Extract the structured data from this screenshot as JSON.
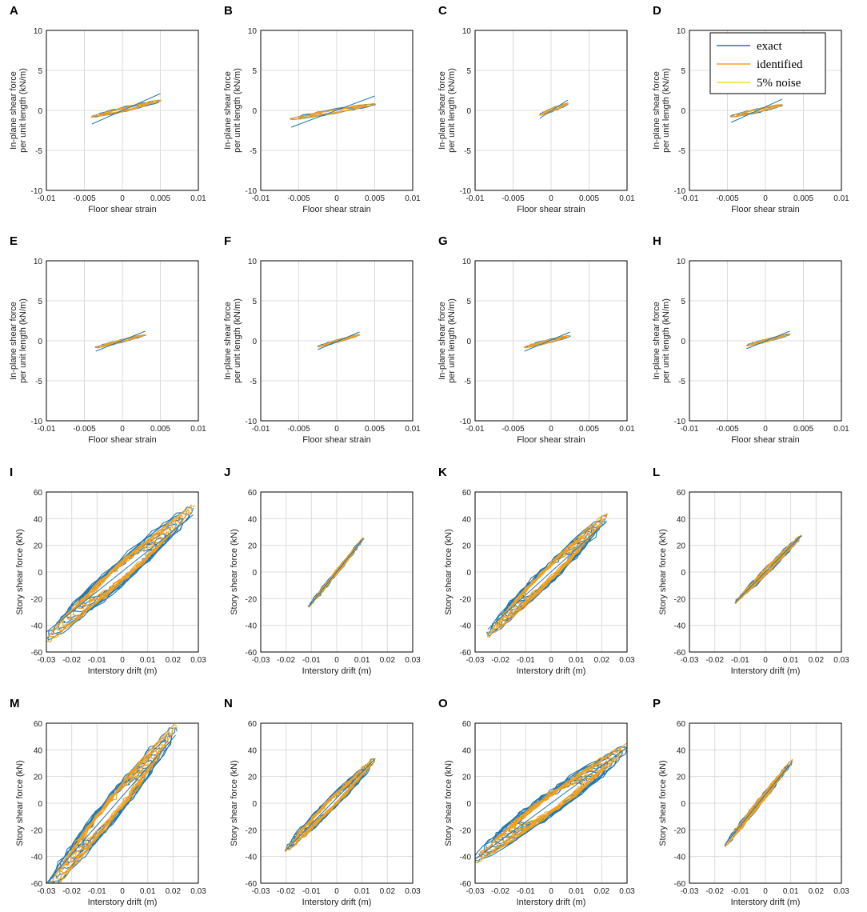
{
  "colors": {
    "exact": "#1f77b4",
    "identified": "#f0a020",
    "noise": "#f0e020",
    "grid": "#dcdcdc"
  },
  "legend": {
    "panel": "D",
    "placement": "top-right",
    "exact": "exact",
    "identified": "identified",
    "noise": "5% noise"
  },
  "chart_data": [
    {
      "letter": "A",
      "type": "line",
      "xlabel": "Floor shear strain",
      "ylabel": [
        "In-plane shear force",
        "per unit length (kN/m)"
      ],
      "xlim": [
        -0.01,
        0.01
      ],
      "ylim": [
        -10,
        10
      ],
      "xticks": [
        "-0.01",
        "-0.005",
        "0",
        "0.005",
        "0.01"
      ],
      "yticks": [
        "10",
        "5",
        "0",
        "-5",
        "-10"
      ],
      "loop": {
        "xmin": -0.004,
        "xmax": 0.005,
        "ymin": -1.7,
        "ymax": 2.1,
        "slope_rel": 0.45,
        "thick": 0.25,
        "n": 3
      }
    },
    {
      "letter": "B",
      "type": "line",
      "xlabel": "Floor shear strain",
      "ylabel": [
        "In-plane shear force",
        "per unit length (kN/m)"
      ],
      "xlim": [
        -0.01,
        0.01
      ],
      "ylim": [
        -10,
        10
      ],
      "xticks": [
        "-0.01",
        "-0.005",
        "0",
        "0.005",
        "0.01"
      ],
      "yticks": [
        "10",
        "5",
        "0",
        "-5",
        "-10"
      ],
      "loop": {
        "xmin": -0.006,
        "xmax": 0.005,
        "ymin": -2.1,
        "ymax": 1.8,
        "slope_rel": 0.4,
        "thick": 0.25,
        "n": 3
      }
    },
    {
      "letter": "C",
      "type": "line",
      "xlabel": "Floor shear strain",
      "ylabel": [
        "In-plane shear force",
        "per unit length (kN/m)"
      ],
      "xlim": [
        -0.01,
        0.01
      ],
      "ylim": [
        -10,
        10
      ],
      "xticks": [
        "-0.01",
        "-0.005",
        "0",
        "0.005",
        "0.01"
      ],
      "yticks": [
        "10",
        "5",
        "0",
        "-5",
        "-10"
      ],
      "loop": {
        "xmin": -0.0015,
        "xmax": 0.0022,
        "ymin": -1.0,
        "ymax": 1.3,
        "slope_rel": 0.5,
        "thick": 0.35,
        "n": 3
      }
    },
    {
      "letter": "D",
      "type": "line",
      "xlabel": "Floor shear strain",
      "ylabel": [
        "In-plane shear force",
        "per unit length (kN/m)"
      ],
      "xlim": [
        -0.01,
        0.01
      ],
      "ylim": [
        -10,
        10
      ],
      "xticks": [
        "-0.01",
        "-0.005",
        "0",
        "0.005",
        "0.01"
      ],
      "yticks": [
        "10",
        "5",
        "0",
        "-5",
        "-10"
      ],
      "loop": {
        "xmin": -0.0045,
        "xmax": 0.0022,
        "ymin": -1.5,
        "ymax": 1.4,
        "slope_rel": 0.4,
        "thick": 0.3,
        "n": 3
      }
    },
    {
      "letter": "E",
      "type": "line",
      "xlabel": "Floor shear strain",
      "ylabel": [
        "In-plane shear force",
        "per unit length (kN/m)"
      ],
      "xlim": [
        -0.01,
        0.01
      ],
      "ylim": [
        -10,
        10
      ],
      "xticks": [
        "-0.01",
        "-0.005",
        "0",
        "0.005",
        "0.01"
      ],
      "yticks": [
        "10",
        "5",
        "0",
        "-5",
        "-10"
      ],
      "loop": {
        "xmin": -0.0035,
        "xmax": 0.003,
        "ymin": -1.3,
        "ymax": 1.2,
        "slope_rel": 0.55,
        "thick": 0.25,
        "n": 3
      }
    },
    {
      "letter": "F",
      "type": "line",
      "xlabel": "Floor shear strain",
      "ylabel": [
        "In-plane shear force",
        "per unit length (kN/m)"
      ],
      "xlim": [
        -0.01,
        0.01
      ],
      "ylim": [
        -10,
        10
      ],
      "xticks": [
        "-0.01",
        "-0.005",
        "0",
        "0.005",
        "0.01"
      ],
      "yticks": [
        "10",
        "5",
        "0",
        "-5",
        "-10"
      ],
      "loop": {
        "xmin": -0.0025,
        "xmax": 0.003,
        "ymin": -1.1,
        "ymax": 1.1,
        "slope_rel": 0.6,
        "thick": 0.25,
        "n": 3
      }
    },
    {
      "letter": "G",
      "type": "line",
      "xlabel": "Floor shear strain",
      "ylabel": [
        "In-plane shear force",
        "per unit length (kN/m)"
      ],
      "xlim": [
        -0.01,
        0.01
      ],
      "ylim": [
        -10,
        10
      ],
      "xticks": [
        "-0.01",
        "-0.005",
        "0",
        "0.005",
        "0.01"
      ],
      "yticks": [
        "10",
        "5",
        "0",
        "-5",
        "-10"
      ],
      "loop": {
        "xmin": -0.0035,
        "xmax": 0.0025,
        "ymin": -1.3,
        "ymax": 1.1,
        "slope_rel": 0.5,
        "thick": 0.3,
        "n": 3
      }
    },
    {
      "letter": "H",
      "type": "line",
      "xlabel": "Floor shear strain",
      "ylabel": [
        "In-plane shear force",
        "per unit length (kN/m)"
      ],
      "xlim": [
        -0.01,
        0.01
      ],
      "ylim": [
        -10,
        10
      ],
      "xticks": [
        "-0.01",
        "-0.005",
        "0",
        "0.005",
        "0.01"
      ],
      "yticks": [
        "10",
        "5",
        "0",
        "-5",
        "-10"
      ],
      "loop": {
        "xmin": -0.0025,
        "xmax": 0.0032,
        "ymin": -1.0,
        "ymax": 1.2,
        "slope_rel": 0.55,
        "thick": 0.3,
        "n": 3
      }
    },
    {
      "letter": "I",
      "type": "line",
      "xlabel": "Interstory drift (m)",
      "ylabel": [
        "Story shear force (kN)"
      ],
      "xlim": [
        -0.03,
        0.03
      ],
      "ylim": [
        -60,
        60
      ],
      "xticks": [
        "-0.03",
        "-0.02",
        "-0.01",
        "0",
        "0.01",
        "0.02",
        "0.03"
      ],
      "yticks": [
        "60",
        "40",
        "20",
        "0",
        "-20",
        "-40",
        "-60"
      ],
      "loop": {
        "xmin": -0.03,
        "xmax": 0.028,
        "ymin": -45,
        "ymax": 43,
        "slope_rel": 0.85,
        "thick": 0.55,
        "n": 9
      }
    },
    {
      "letter": "J",
      "type": "line",
      "xlabel": "Interstory drift (m)",
      "ylabel": [
        "Story shear force (kN)"
      ],
      "xlim": [
        -0.03,
        0.03
      ],
      "ylim": [
        -60,
        60
      ],
      "xticks": [
        "-0.03",
        "-0.02",
        "-0.01",
        "0",
        "0.01",
        "0.02",
        "0.03"
      ],
      "yticks": [
        "60",
        "40",
        "20",
        "0",
        "-20",
        "-40",
        "-60"
      ],
      "loop": {
        "xmin": -0.011,
        "xmax": 0.0105,
        "ymin": -26,
        "ymax": 25,
        "slope_rel": 0.95,
        "thick": 0.12,
        "n": 5
      }
    },
    {
      "letter": "K",
      "type": "line",
      "xlabel": "Interstory drift (m)",
      "ylabel": [
        "Story shear force (kN)"
      ],
      "xlim": [
        -0.03,
        0.03
      ],
      "ylim": [
        -60,
        60
      ],
      "xticks": [
        "-0.03",
        "-0.02",
        "-0.01",
        "0",
        "0.01",
        "0.02",
        "0.03"
      ],
      "yticks": [
        "60",
        "40",
        "20",
        "0",
        "-20",
        "-40",
        "-60"
      ],
      "loop": {
        "xmin": -0.025,
        "xmax": 0.022,
        "ymin": -43,
        "ymax": 38,
        "slope_rel": 0.85,
        "thick": 0.5,
        "n": 9
      }
    },
    {
      "letter": "L",
      "type": "line",
      "xlabel": "Interstory drift (m)",
      "ylabel": [
        "Story shear force (kN)"
      ],
      "xlim": [
        -0.03,
        0.03
      ],
      "ylim": [
        -60,
        60
      ],
      "xticks": [
        "-0.03",
        "-0.02",
        "-0.01",
        "0",
        "0.01",
        "0.02",
        "0.03"
      ],
      "yticks": [
        "60",
        "40",
        "20",
        "0",
        "-20",
        "-40",
        "-60"
      ],
      "loop": {
        "xmin": -0.012,
        "xmax": 0.014,
        "ymin": -23,
        "ymax": 27,
        "slope_rel": 0.9,
        "thick": 0.22,
        "n": 7
      }
    },
    {
      "letter": "M",
      "type": "line",
      "xlabel": "Interstory drift (m)",
      "ylabel": [
        "Story shear force (kN)"
      ],
      "xlim": [
        -0.03,
        0.03
      ],
      "ylim": [
        -60,
        60
      ],
      "xticks": [
        "-0.03",
        "-0.02",
        "-0.01",
        "0",
        "0.01",
        "0.02",
        "0.03"
      ],
      "yticks": [
        "60",
        "40",
        "20",
        "0",
        "-20",
        "-40",
        "-60"
      ],
      "loop": {
        "xmin": -0.03,
        "xmax": 0.021,
        "ymin": -60,
        "ymax": 51,
        "slope_rel": 0.85,
        "thick": 0.5,
        "n": 9
      }
    },
    {
      "letter": "N",
      "type": "line",
      "xlabel": "Interstory drift (m)",
      "ylabel": [
        "Story shear force (kN)"
      ],
      "xlim": [
        -0.03,
        0.03
      ],
      "ylim": [
        -60,
        60
      ],
      "xticks": [
        "-0.03",
        "-0.02",
        "-0.01",
        "0",
        "0.01",
        "0.02",
        "0.03"
      ],
      "yticks": [
        "60",
        "40",
        "20",
        "0",
        "-20",
        "-40",
        "-60"
      ],
      "loop": {
        "xmin": -0.02,
        "xmax": 0.015,
        "ymin": -35,
        "ymax": 33,
        "slope_rel": 0.8,
        "thick": 0.4,
        "n": 9
      }
    },
    {
      "letter": "O",
      "type": "line",
      "xlabel": "Interstory drift (m)",
      "ylabel": [
        "Story shear force (kN)"
      ],
      "xlim": [
        -0.03,
        0.03
      ],
      "ylim": [
        -60,
        60
      ],
      "xticks": [
        "-0.03",
        "-0.02",
        "-0.01",
        "0",
        "0.01",
        "0.02",
        "0.03"
      ],
      "yticks": [
        "60",
        "40",
        "20",
        "0",
        "-20",
        "-40",
        "-60"
      ],
      "loop": {
        "xmin": -0.03,
        "xmax": 0.03,
        "ymin": -42,
        "ymax": 42,
        "slope_rel": 0.7,
        "thick": 0.6,
        "n": 10
      }
    },
    {
      "letter": "P",
      "type": "line",
      "xlabel": "Interstory drift (m)",
      "ylabel": [
        "Story shear force (kN)"
      ],
      "xlim": [
        -0.03,
        0.03
      ],
      "ylim": [
        -60,
        60
      ],
      "xticks": [
        "-0.03",
        "-0.02",
        "-0.01",
        "0",
        "0.01",
        "0.02",
        "0.03"
      ],
      "yticks": [
        "60",
        "40",
        "20",
        "0",
        "-20",
        "-40",
        "-60"
      ],
      "loop": {
        "xmin": -0.016,
        "xmax": 0.0105,
        "ymin": -31,
        "ymax": 31,
        "slope_rel": 0.95,
        "thick": 0.18,
        "n": 6
      }
    }
  ]
}
